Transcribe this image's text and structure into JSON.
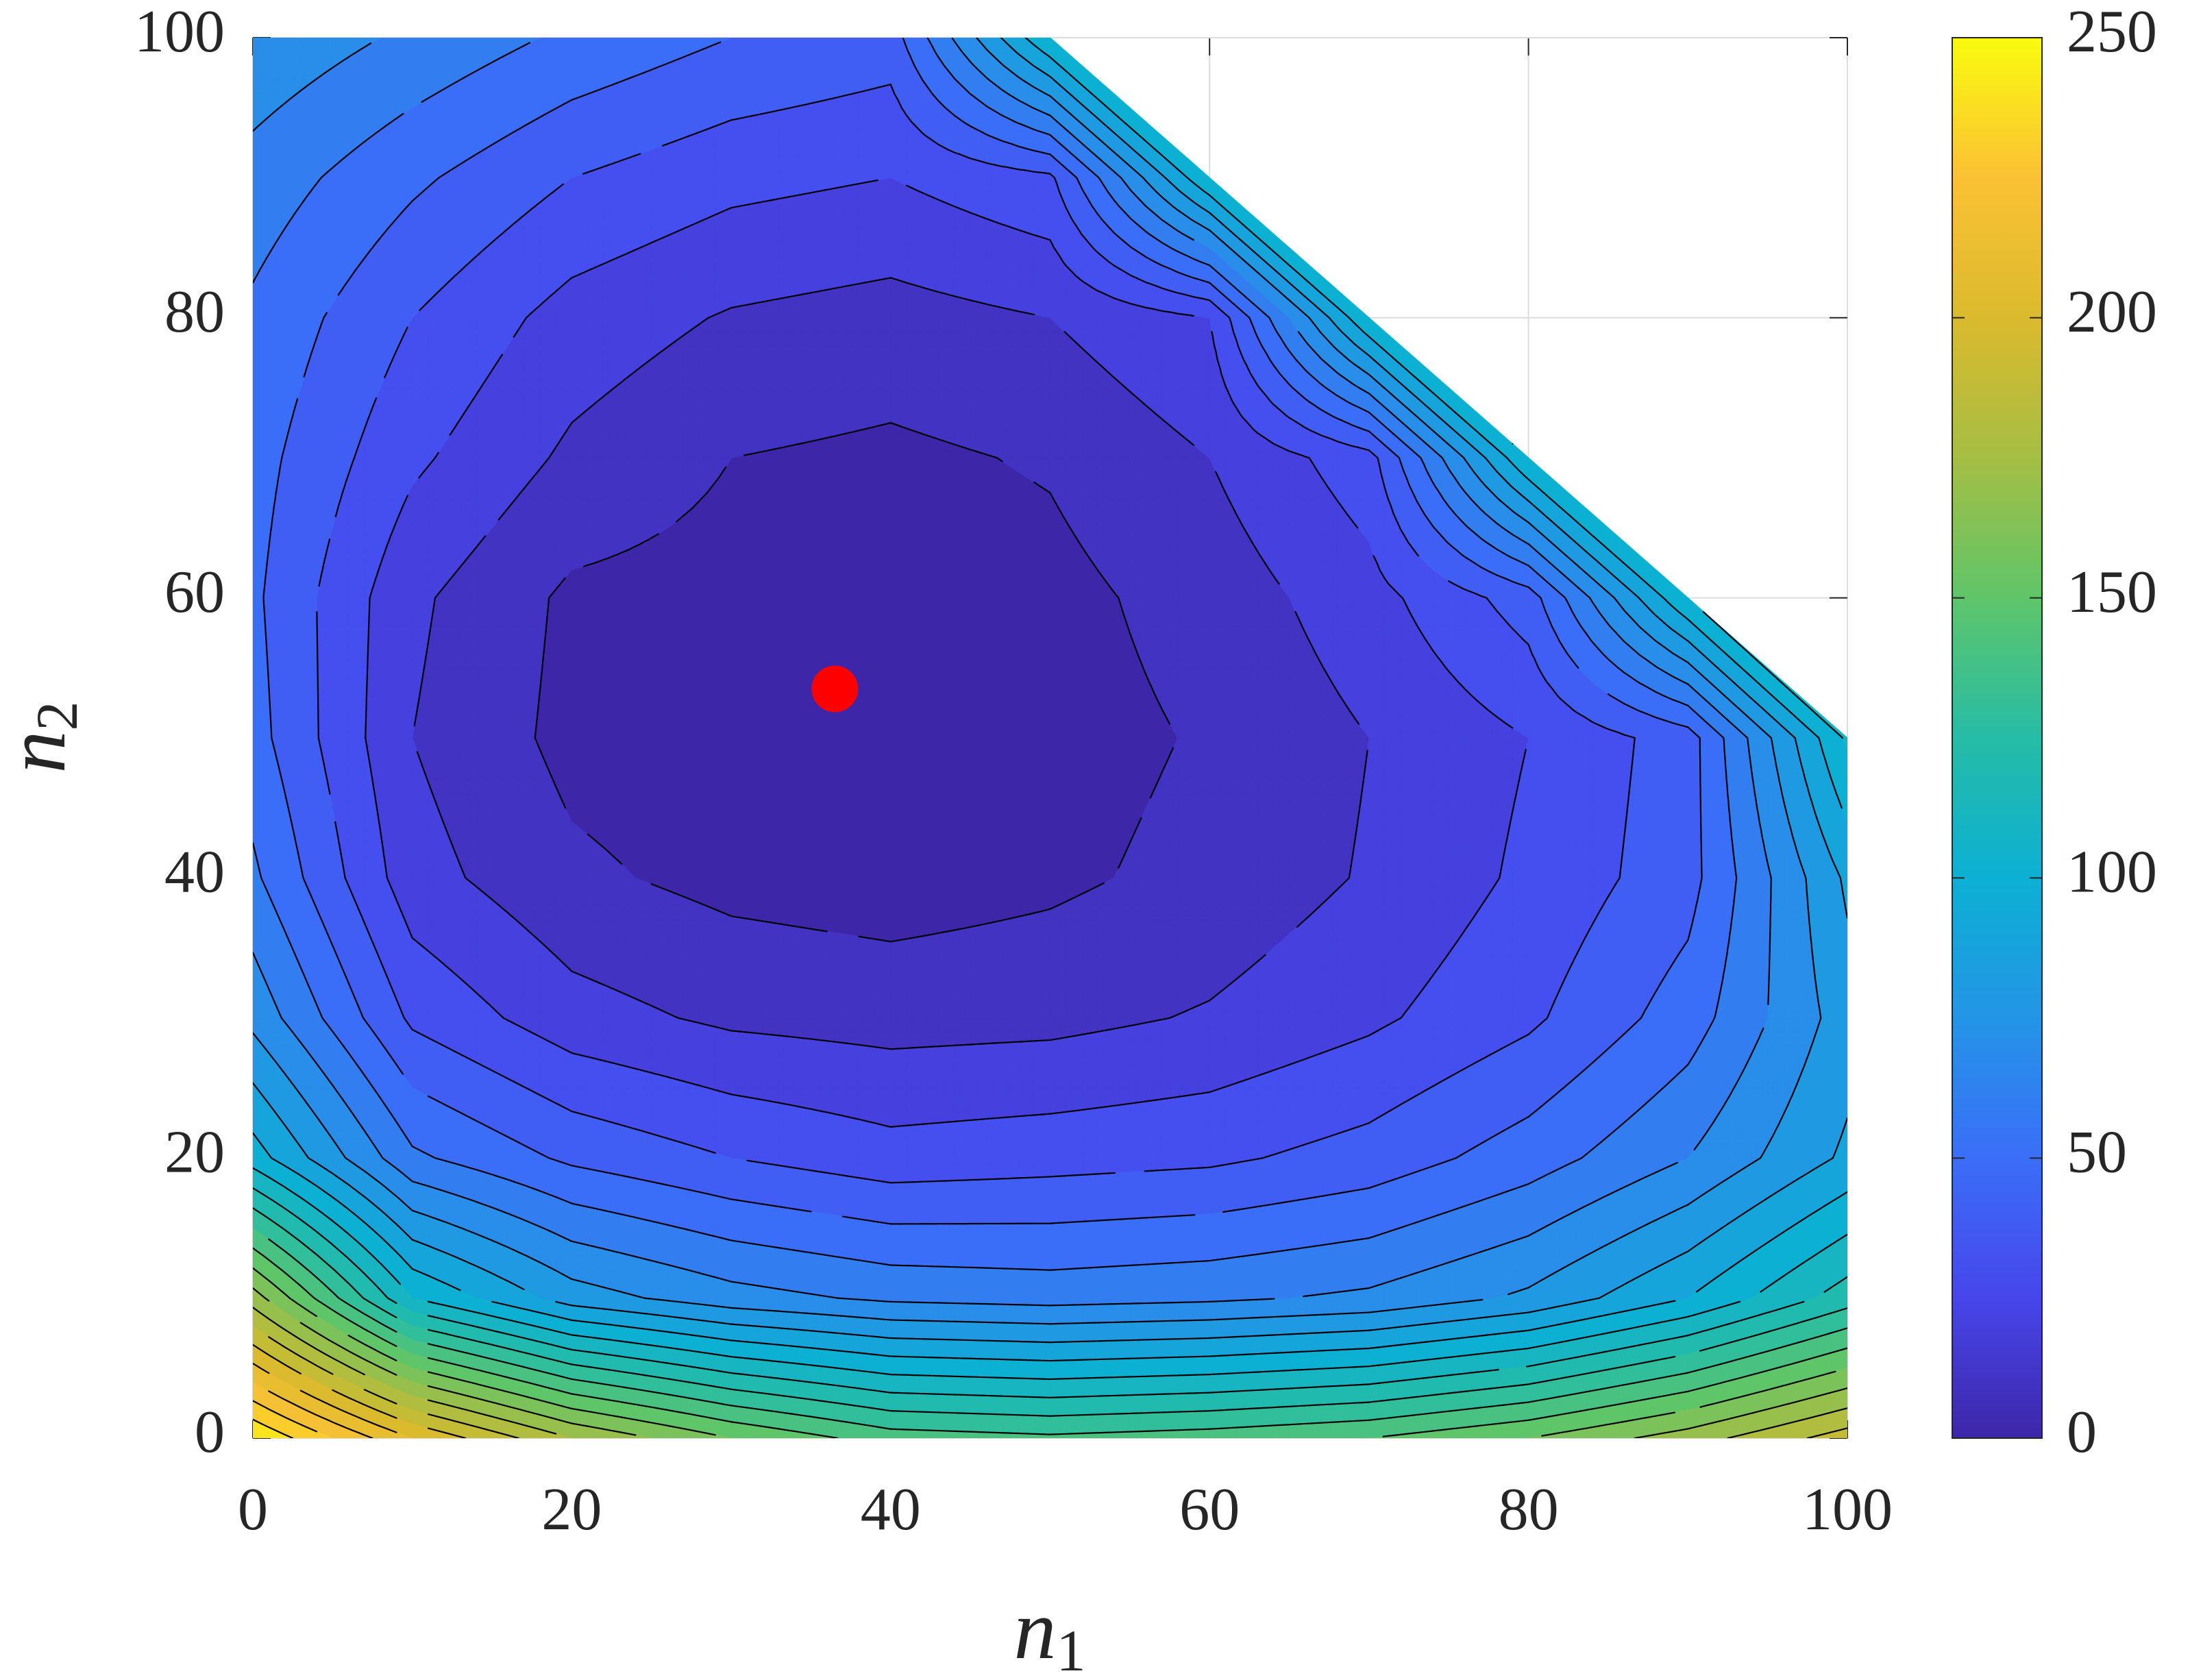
{
  "chart_data": {
    "type": "contour",
    "xlabel": {
      "text": "n",
      "subscript": "1"
    },
    "ylabel": {
      "text": "n",
      "subscript": "2"
    },
    "x": [
      0,
      10,
      20,
      30,
      40,
      50,
      60,
      70,
      80,
      90,
      100
    ],
    "y": [
      0,
      10,
      20,
      30,
      40,
      50,
      60,
      70,
      80,
      90,
      100
    ],
    "z": [
      [
        250,
        210,
        180,
        160,
        145,
        142,
        145,
        150,
        160,
        175,
        195
      ],
      [
        175,
        110,
        85,
        74,
        68,
        66,
        68,
        72,
        82,
        100,
        125
      ],
      [
        105,
        62,
        48,
        40,
        34,
        36,
        38,
        44,
        55,
        70,
        92
      ],
      [
        77,
        38,
        24,
        18,
        16,
        17,
        21,
        28,
        38,
        55,
        85
      ],
      [
        62,
        24,
        12,
        7,
        5,
        8,
        13,
        21,
        32,
        46,
        92
      ],
      [
        54,
        20,
        7,
        4,
        3,
        6,
        11,
        20,
        30,
        45,
        112
      ],
      [
        52,
        22,
        8,
        6,
        4,
        7,
        14,
        26,
        45,
        110,
        null
      ],
      [
        54,
        32,
        18,
        10,
        8,
        11,
        20,
        36,
        110,
        null,
        null
      ],
      [
        58,
        40,
        26,
        19,
        16,
        20,
        30,
        110,
        null,
        null,
        null
      ],
      [
        66,
        52,
        40,
        33,
        30,
        38,
        110,
        null,
        null,
        null,
        null
      ],
      [
        78,
        68,
        58,
        50,
        45,
        110,
        null,
        null,
        null,
        null,
        null
      ]
    ],
    "xlim": [
      0,
      100
    ],
    "ylim": [
      0,
      100
    ],
    "xticks": [
      0,
      20,
      40,
      60,
      80,
      100
    ],
    "yticks": [
      0,
      20,
      40,
      60,
      80,
      100
    ],
    "grid": true,
    "colormap": "parula",
    "clim": [
      0,
      250
    ],
    "cticks": [
      0,
      50,
      100,
      150,
      200,
      250
    ],
    "contour_step": 10,
    "line_color": "#000000",
    "marker": {
      "x": 36.5,
      "y": 53.5,
      "color": "#ff0000"
    }
  }
}
